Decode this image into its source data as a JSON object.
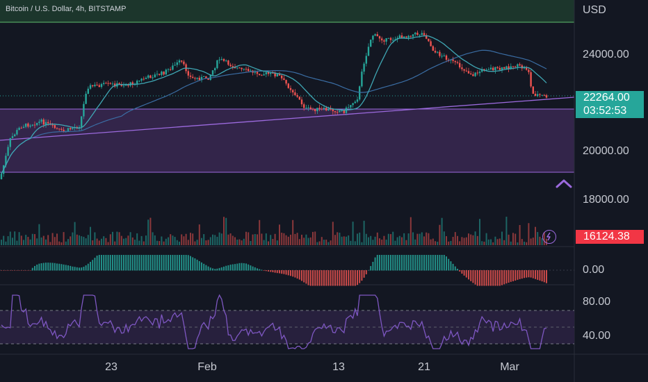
{
  "header": {
    "symbol_title": "Bitcoin / U.S. Dollar, 4h, BITSTAMP"
  },
  "price_axis": {
    "currency": "USD",
    "ticks": [
      "24000.00",
      "20000.00",
      "18000.00"
    ],
    "current_price": "22264.00",
    "countdown": "03:52:53",
    "volume_label": "16124.38"
  },
  "macd_axis": {
    "ticks": [
      "0.00"
    ]
  },
  "rsi_axis": {
    "ticks": [
      "80.00",
      "40.00"
    ]
  },
  "time_axis": {
    "labels": [
      "23",
      "Feb",
      "13",
      "21",
      "Mar"
    ]
  },
  "colors": {
    "background": "#131722",
    "up": "#26a69a",
    "down": "#ef5350",
    "price_badge": "#26a69a",
    "volume_badge": "#f23645",
    "zone": "#9c6ade",
    "resistance_line": "#5fbf6e",
    "ma_fast": "#3fa7b4",
    "ma_slow": "#3b6ea5",
    "rsi": "#7e57c2"
  },
  "icons": {
    "alert": "chevron-up-icon",
    "lightning": "lightning-icon"
  }
}
